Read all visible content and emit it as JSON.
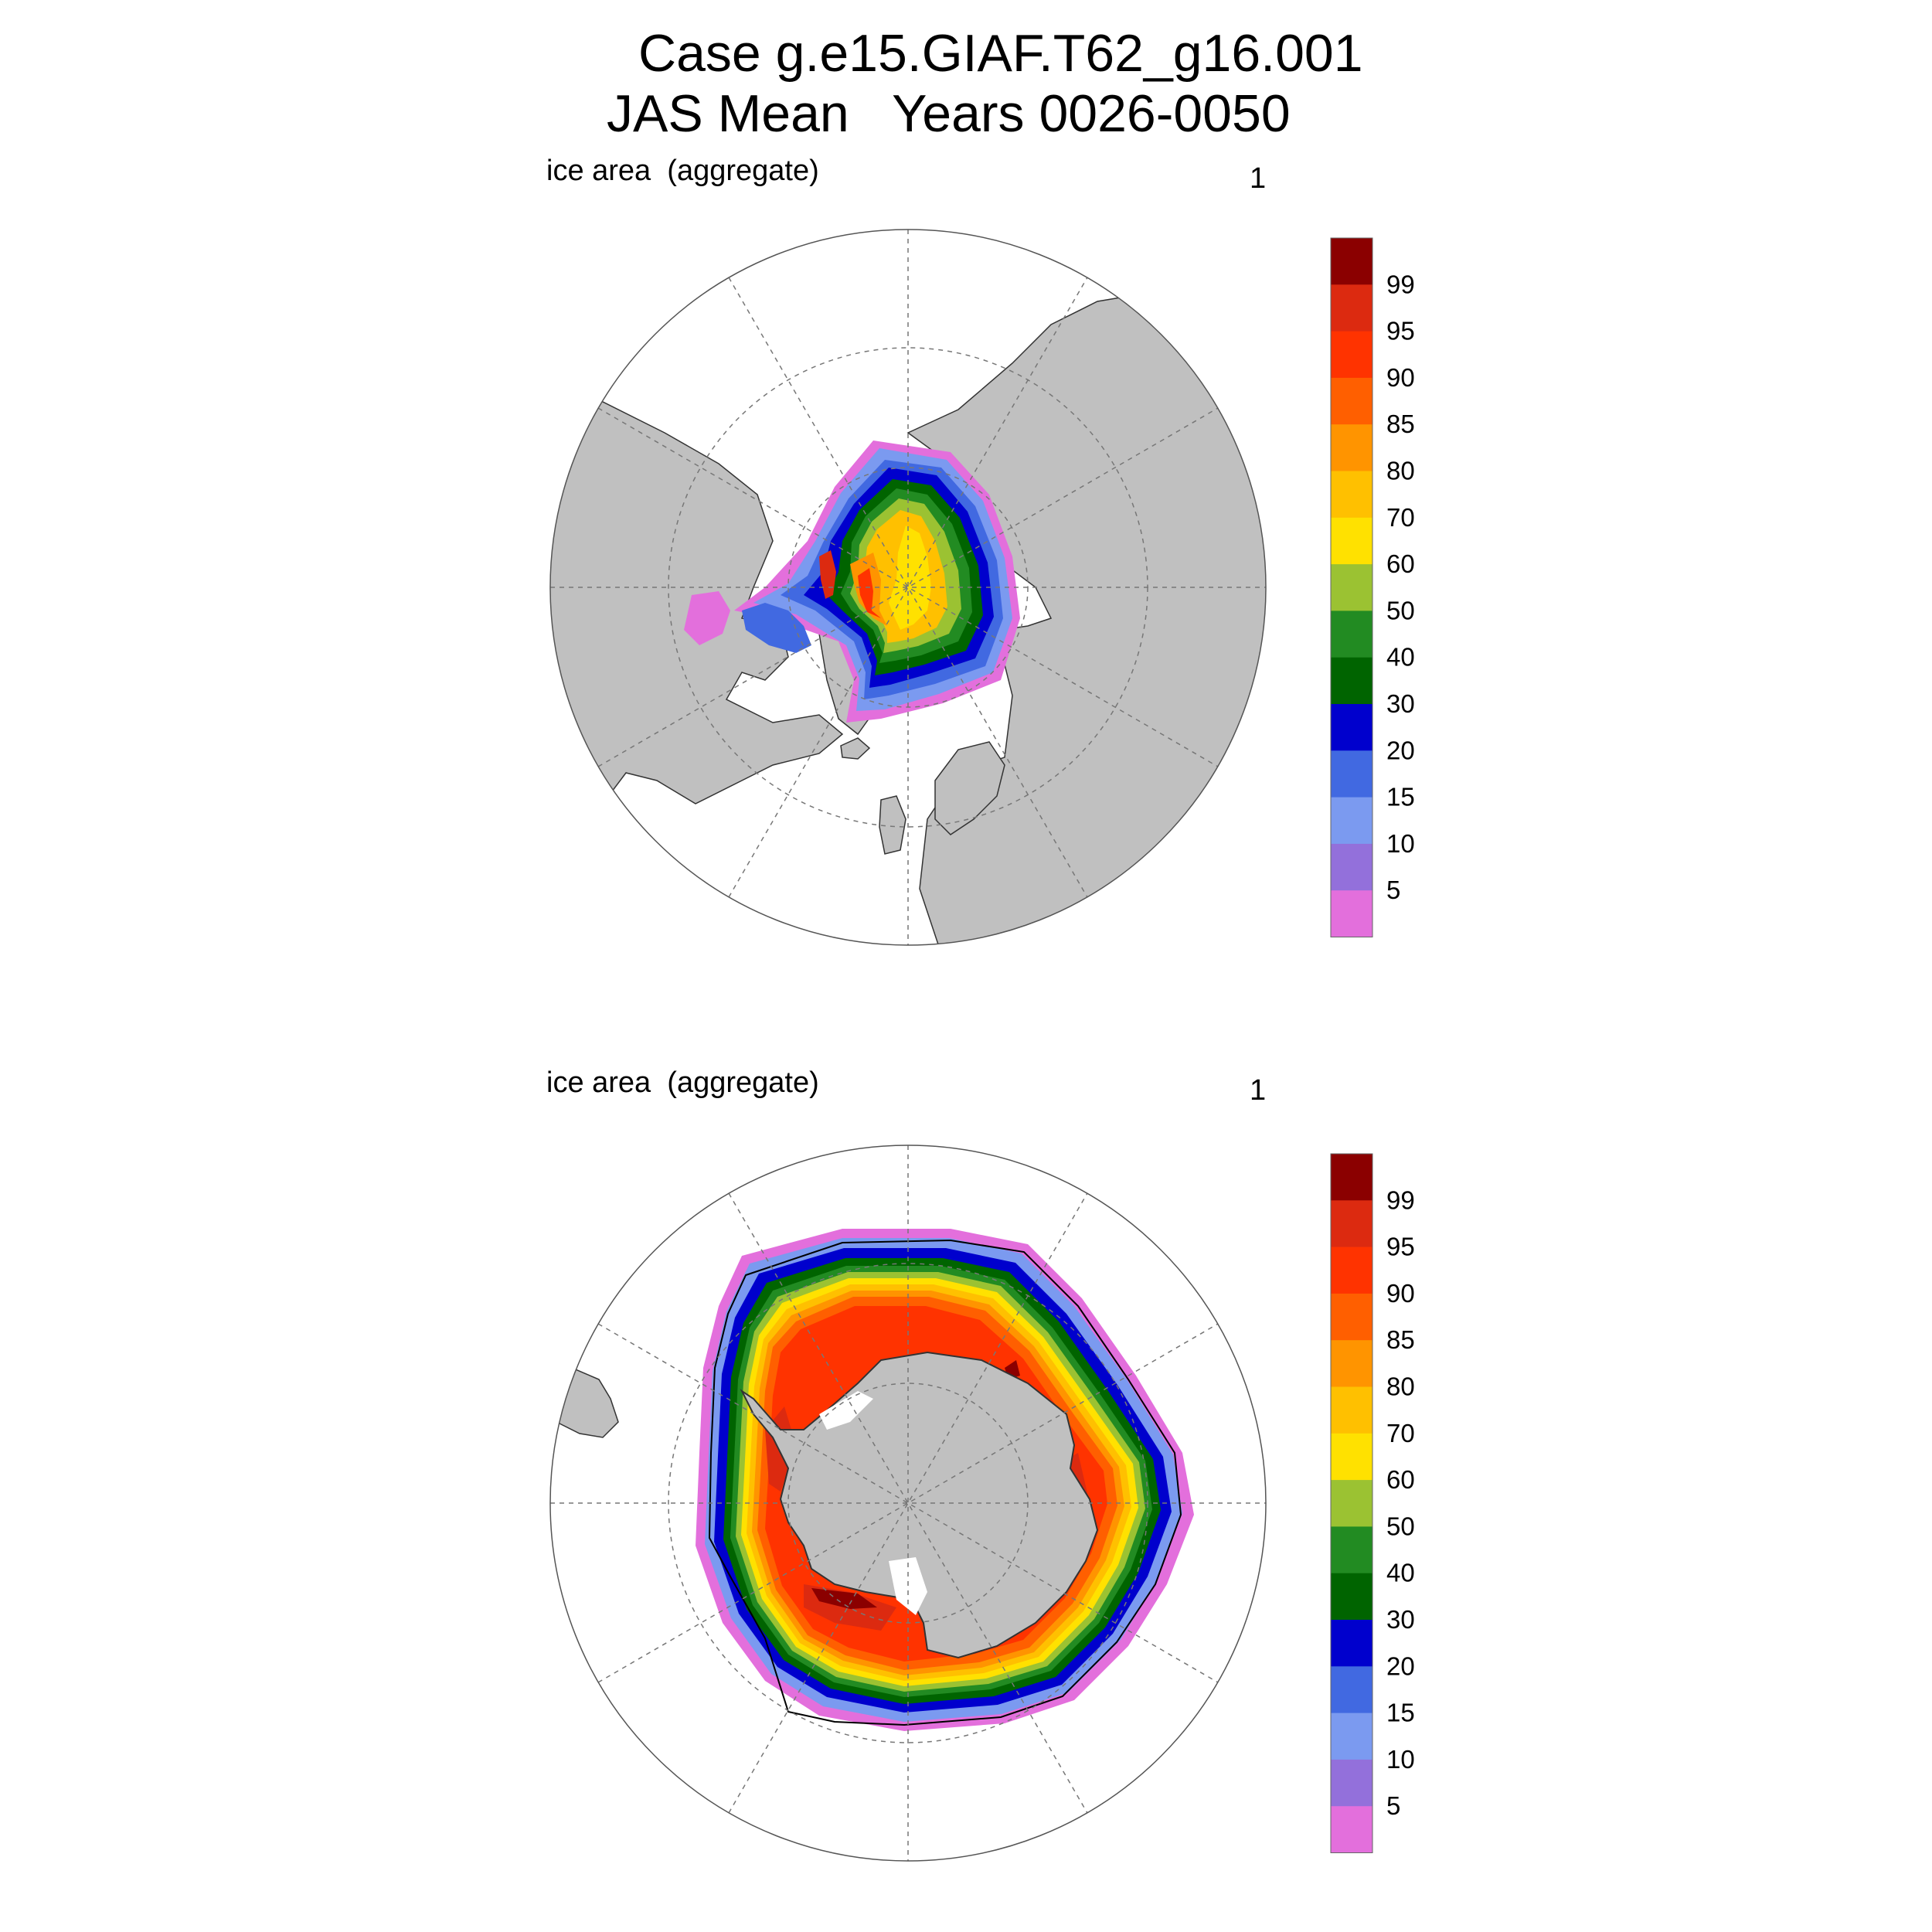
{
  "title": {
    "line1": "Case g.e15.GIAF.T62_g16.001",
    "line2": "JAS Mean   Years 0026-0050"
  },
  "panels": [
    {
      "id": "north",
      "label": "ice area  (aggregate)",
      "units": "1"
    },
    {
      "id": "south",
      "label": "ice area  (aggregate)",
      "units": "1"
    }
  ],
  "colorbar": {
    "levels": [
      "99",
      "95",
      "90",
      "85",
      "80",
      "70",
      "60",
      "50",
      "40",
      "30",
      "20",
      "15",
      "10",
      "5"
    ],
    "colors": [
      "#8b0000",
      "#dc2a10",
      "#ff3300",
      "#ff5f00",
      "#ff9400",
      "#ffc000",
      "#ffe100",
      "#9bc232",
      "#228b22",
      "#006400",
      "#0000cd",
      "#4169e1",
      "#7b9af0",
      "#9370db",
      "#e36fdc"
    ]
  },
  "colors": {
    "land": "#c0c0c0",
    "ocean": "#ffffff",
    "grid": "#777777"
  }
}
